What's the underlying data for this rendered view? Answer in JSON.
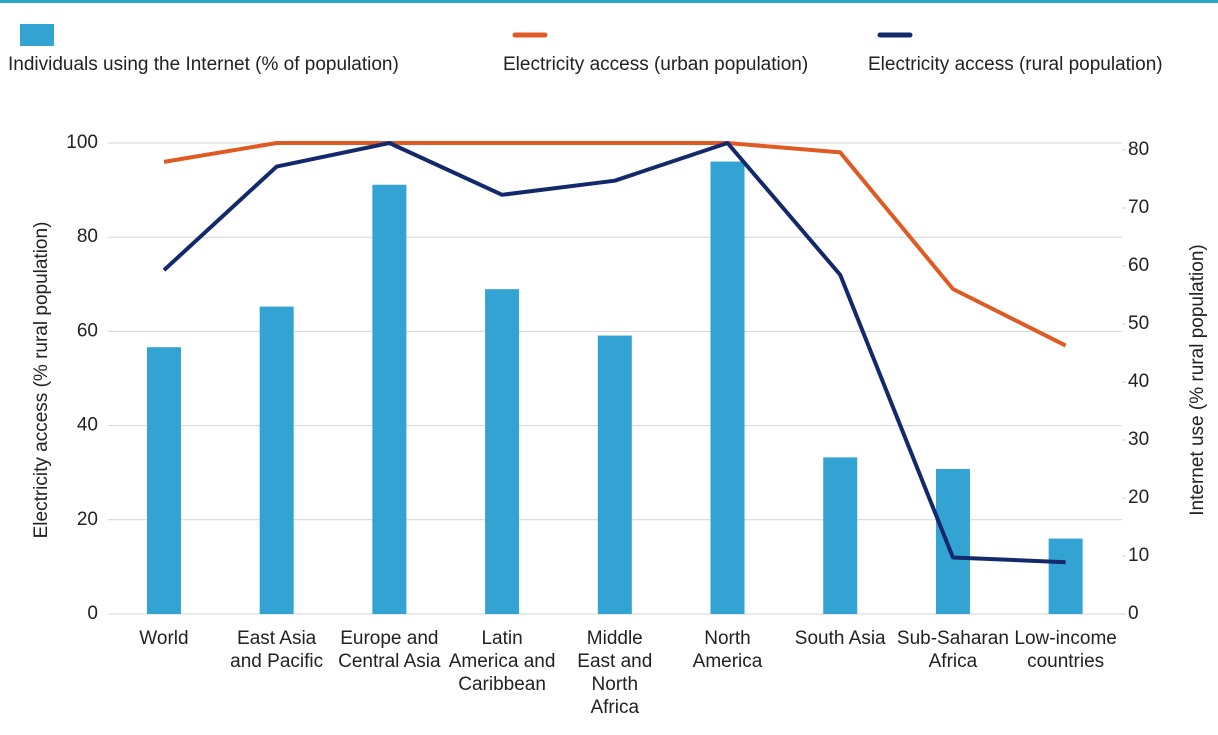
{
  "chart_data": {
    "type": "bar-line",
    "categories": [
      "World",
      "East Asia and Pacific",
      "Europe and Central Asia",
      "Latin America and Caribbean",
      "Middle East and North Africa",
      "North America",
      "South Asia",
      "Sub-Saharan Africa",
      "Low-income countries"
    ],
    "series": [
      {
        "name": "Individuals using the Internet (% of population)",
        "type": "bar",
        "axis": "y2",
        "color": "#33a3d4",
        "values": [
          46,
          53,
          74,
          56,
          48,
          78,
          27,
          25,
          13
        ]
      },
      {
        "name": "Electricity access (urban population)",
        "type": "line",
        "axis": "y",
        "color": "#e05a24",
        "values": [
          96,
          100,
          100,
          100,
          100,
          100,
          98,
          69,
          57
        ]
      },
      {
        "name": "Electricity access (rural population)",
        "type": "line",
        "axis": "y",
        "color": "#13296b",
        "values": [
          73,
          95,
          100,
          89,
          92,
          100,
          72,
          12,
          11
        ]
      }
    ],
    "ylabel": "Electricity access (% rural population)",
    "y2label": "Internet use (% rural population)",
    "ylim": [
      0,
      100
    ],
    "yticks": [
      0,
      20,
      40,
      60,
      80,
      100
    ],
    "y2lim": [
      0,
      81.2
    ],
    "y2ticks": [
      0,
      10,
      20,
      30,
      40,
      50,
      60,
      70,
      80
    ],
    "grid": true,
    "legend": "top"
  }
}
